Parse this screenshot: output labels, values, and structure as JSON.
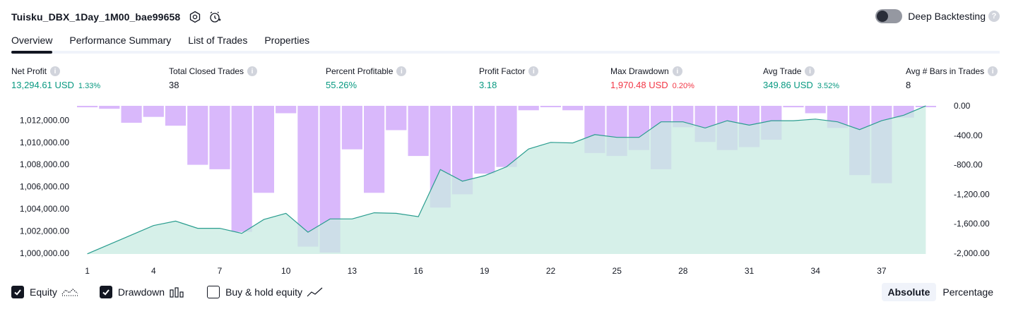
{
  "header": {
    "strategy_name": "Tuisku_DBX_1Day_1M00_bae99658",
    "deep_backtesting_label": "Deep Backtesting",
    "deep_backtesting_enabled": false
  },
  "tabs": [
    {
      "label": "Overview",
      "active": true
    },
    {
      "label": "Performance Summary",
      "active": false
    },
    {
      "label": "List of Trades",
      "active": false
    },
    {
      "label": "Properties",
      "active": false
    }
  ],
  "metrics": {
    "net_profit": {
      "label": "Net Profit",
      "value": "13,294.61 USD",
      "sub": "1.33%"
    },
    "total_closed_trades": {
      "label": "Total Closed Trades",
      "value": "38"
    },
    "percent_profitable": {
      "label": "Percent Profitable",
      "value": "55.26%"
    },
    "profit_factor": {
      "label": "Profit Factor",
      "value": "3.18"
    },
    "max_drawdown": {
      "label": "Max Drawdown",
      "value": "1,970.48 USD",
      "sub": "0.20%"
    },
    "avg_trade": {
      "label": "Avg Trade",
      "value": "349.86 USD",
      "sub": "3.52%"
    },
    "avg_bars": {
      "label": "Avg # Bars in Trades",
      "value": "8"
    }
  },
  "colors": {
    "positive": "#089981",
    "negative": "#f23645",
    "equity_line": "#2a9d8f",
    "equity_fill": "#c8ebe2",
    "drawdown_bar": "#d9b8fb"
  },
  "chart_data": {
    "type": "line",
    "x": [
      1,
      2,
      3,
      4,
      5,
      6,
      7,
      8,
      9,
      10,
      11,
      12,
      13,
      14,
      15,
      16,
      17,
      18,
      19,
      20,
      21,
      22,
      23,
      24,
      25,
      26,
      27,
      28,
      29,
      30,
      31,
      32,
      33,
      34,
      35,
      36,
      37,
      38,
      39
    ],
    "x_ticks": [
      "1",
      "4",
      "7",
      "10",
      "13",
      "16",
      "19",
      "22",
      "25",
      "28",
      "31",
      "34",
      "37"
    ],
    "series": [
      {
        "axis": "left",
        "style": "area-line",
        "values": [
          999950,
          1000800,
          1001650,
          1002500,
          1002900,
          1002250,
          1002250,
          1001800,
          1003050,
          1003600,
          1001900,
          1003100,
          1003100,
          1003650,
          1003600,
          1003300,
          1007550,
          1006500,
          1007000,
          1007800,
          1009400,
          1010000,
          1009950,
          1010700,
          1010450,
          1010450,
          1011850,
          1011850,
          1011300,
          1011950,
          1011550,
          1011950,
          1011950,
          1012100,
          1011850,
          1011150,
          1011950,
          1012450,
          1013290
        ]
      },
      {
        "axis": "right",
        "style": "bar",
        "values": [
          -20,
          -40,
          -230,
          -150,
          -270,
          -800,
          -860,
          -1710,
          -1180,
          -100,
          -1910,
          -1990,
          -590,
          -1180,
          -330,
          -680,
          -1380,
          -1200,
          -920,
          -830,
          -60,
          0,
          -60,
          -640,
          -680,
          -600,
          -860,
          -290,
          -490,
          -600,
          -560,
          -460,
          -20,
          -100,
          -300,
          -940,
          -1050,
          -160,
          0
        ]
      }
    ],
    "y_left_ticks": [
      "1,012,000.00",
      "1,010,000.00",
      "1,008,000.00",
      "1,006,000.00",
      "1,004,000.00",
      "1,002,000.00",
      "1,000,000.00"
    ],
    "y_right_ticks": [
      "0.00",
      "-400.00",
      "-800.00",
      "-1,200.00",
      "-1,600.00",
      "-2,000.00"
    ],
    "y_left_range": [
      1000000,
      1013294.61
    ],
    "y_right_range": [
      -2000,
      0
    ],
    "grid": false
  },
  "legend": {
    "equity": {
      "label": "Equity",
      "checked": true,
      "icon": "equity-line-icon"
    },
    "drawdown": {
      "label": "Drawdown",
      "checked": true,
      "icon": "drawdown-bars-icon"
    },
    "buy_hold": {
      "label": "Buy & hold equity",
      "checked": false,
      "icon": "buy-hold-line-icon"
    }
  },
  "scale": {
    "absolute_label": "Absolute",
    "percentage_label": "Percentage",
    "selected": "absolute"
  }
}
